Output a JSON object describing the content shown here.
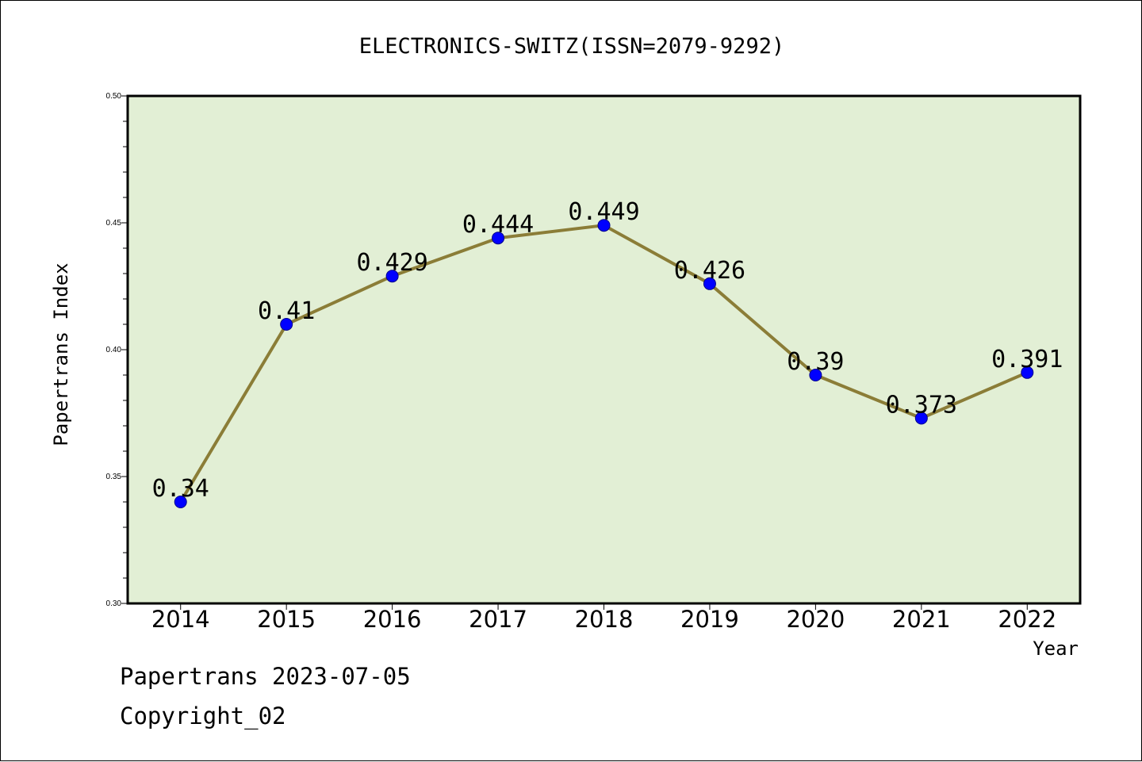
{
  "chart_data": {
    "type": "line",
    "title": "ELECTRONICS-SWITZ(ISSN=2079-9292)",
    "xlabel": "Year",
    "ylabel": "Papertrans Index",
    "categories": [
      "2014",
      "2015",
      "2016",
      "2017",
      "2018",
      "2019",
      "2020",
      "2021",
      "2022"
    ],
    "values": [
      0.34,
      0.41,
      0.429,
      0.444,
      0.449,
      0.426,
      0.39,
      0.373,
      0.391
    ],
    "data_labels": [
      "0.34",
      "0.41",
      "0.429",
      "0.444",
      "0.449",
      "0.426",
      "0.39",
      "0.373",
      "0.391"
    ],
    "ylim": [
      0.3,
      0.5
    ],
    "yticks": [
      "0.30",
      "0.35",
      "0.40",
      "0.45",
      "0.50"
    ],
    "grid": false,
    "legend": "none",
    "colors": {
      "plot_background": "#e2efd5",
      "line": "#8b7d37",
      "marker": "#0000ff",
      "marker_edge": "#00008b",
      "axes": "#000000"
    }
  },
  "footer": {
    "source_line": "Papertrans 2023-07-05",
    "copyright_line": "Copyright_02"
  }
}
